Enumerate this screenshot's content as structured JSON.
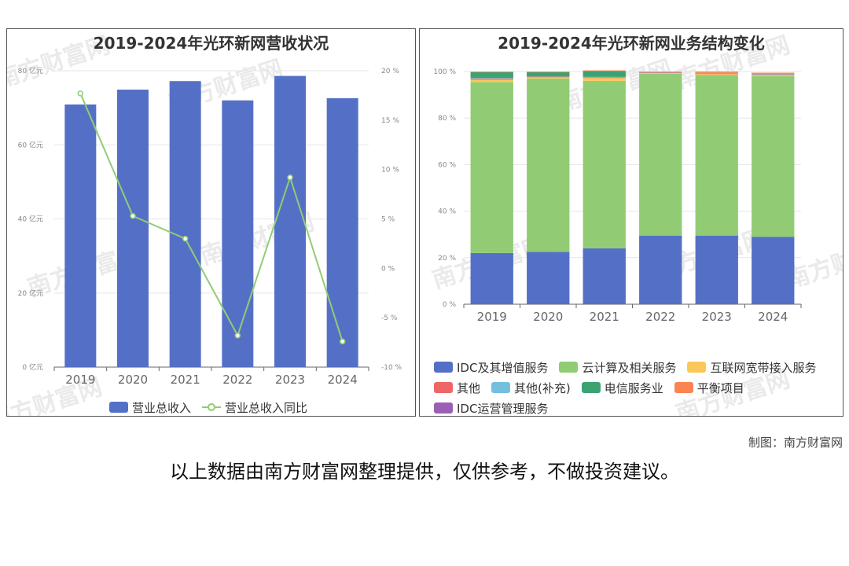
{
  "credit": "制图：南方财富网",
  "disclaimer": "以上数据由南方财富网整理提供，仅供参考，不做投资建议。",
  "watermark": "南方财富网",
  "chart_data": [
    {
      "type": "bar",
      "title": "2019-2024年光环新网营收状况",
      "categories": [
        "2019",
        "2020",
        "2021",
        "2022",
        "2023",
        "2024"
      ],
      "ylim": [
        0,
        80
      ],
      "y_ticks": [
        "0 亿元",
        "20 亿元",
        "40 亿元",
        "60 亿元",
        "80 亿元"
      ],
      "y2lim": [
        -10,
        20
      ],
      "y2_ticks": [
        "-10 %",
        "-5 %",
        "0 %",
        "5 %",
        "10 %",
        "15 %",
        "20 %"
      ],
      "series": [
        {
          "name": "营业总收入",
          "type": "bar",
          "axis": "left",
          "color": "#5470c6",
          "values": [
            70.9,
            74.9,
            77.2,
            72.0,
            78.6,
            72.6
          ]
        },
        {
          "name": "营业总收入同比",
          "type": "line",
          "axis": "right",
          "color": "#91cc75",
          "values": [
            17.7,
            5.3,
            3.0,
            -6.8,
            9.2,
            -7.4
          ]
        }
      ],
      "grid": true,
      "legend": "bottom"
    },
    {
      "type": "bar",
      "stacked": true,
      "title": "2019-2024年光环新网业务结构变化",
      "categories": [
        "2019",
        "2020",
        "2021",
        "2022",
        "2023",
        "2024"
      ],
      "ylim": [
        0,
        100
      ],
      "y_ticks": [
        "0 %",
        "20 %",
        "40 %",
        "60 %",
        "80 %",
        "100 %"
      ],
      "series": [
        {
          "name": "IDC及其增值服务",
          "color": "#5470c6",
          "values": [
            22,
            22.5,
            24,
            29.5,
            29.5,
            29
          ]
        },
        {
          "name": "云计算及相关服务",
          "color": "#91cc75",
          "values": [
            73.5,
            74.5,
            72,
            69.5,
            69,
            69
          ]
        },
        {
          "name": "互联网宽带接入服务",
          "color": "#fac858",
          "values": [
            1,
            0.5,
            1.2,
            0.3,
            0.4,
            0.5
          ]
        },
        {
          "name": "其他",
          "color": "#ee6666",
          "values": [
            0.5,
            0.3,
            0.3,
            0.3,
            0.3,
            0.3
          ]
        },
        {
          "name": "其他(补充)",
          "color": "#73c0de",
          "values": [
            0.2,
            0.1,
            0.2,
            0.2,
            0.2,
            0.2
          ]
        },
        {
          "name": "电信服务业",
          "color": "#3ba272",
          "values": [
            2.5,
            1.8,
            2.5,
            0,
            0,
            0
          ]
        },
        {
          "name": "平衡项目",
          "color": "#fc8452",
          "values": [
            0.3,
            0.3,
            0.3,
            0.2,
            0.6,
            0.5
          ]
        },
        {
          "name": "IDC运营管理服务",
          "color": "#9a60b4",
          "values": [
            0,
            0,
            0,
            0,
            0,
            0
          ]
        }
      ],
      "grid": true,
      "legend": "bottom"
    }
  ]
}
